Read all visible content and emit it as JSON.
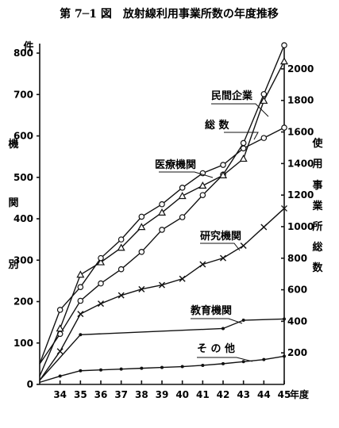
{
  "title": "第 7─1 図　放射線利用事業所数の年度推移",
  "left_axis": {
    "unit": "件",
    "label_chars": [
      "機",
      "関",
      "別"
    ],
    "ticks": [
      0,
      100,
      200,
      300,
      400,
      500,
      600,
      700,
      800
    ]
  },
  "right_axis": {
    "label_chars": [
      "使",
      "用",
      "事",
      "業",
      "所",
      "総",
      "数"
    ],
    "ticks": [
      200,
      400,
      600,
      800,
      1000,
      1200,
      1400,
      1600,
      1800,
      2000
    ]
  },
  "x_axis": {
    "ticks": [
      "34",
      "35",
      "36",
      "37",
      "38",
      "39",
      "40",
      "41",
      "42",
      "43",
      "44",
      "45"
    ],
    "suffix": "年度"
  },
  "chart_data": {
    "type": "line",
    "title": "第 7─1 図　放射線利用事業所数の年度推移",
    "x": [
      33,
      34,
      35,
      36,
      37,
      38,
      39,
      40,
      41,
      42,
      43,
      44,
      45
    ],
    "x_tick_labels": [
      "34",
      "35",
      "36",
      "37",
      "38",
      "39",
      "40",
      "41",
      "42",
      "43",
      "44",
      "45年度"
    ],
    "xlim": [
      33,
      45
    ],
    "y_left": {
      "label": "件 機関別",
      "range": [
        0,
        800
      ]
    },
    "y_right": {
      "label": "使用事業所総数",
      "range": [
        0,
        2100
      ]
    },
    "series": [
      {
        "name": "総 数",
        "axis": "right",
        "marker": "open-circle",
        "x": [
          33,
          34,
          35,
          36,
          37,
          38,
          39,
          40,
          41,
          42,
          43,
          44,
          45
        ],
        "values": [
          130,
          320,
          530,
          640,
          730,
          840,
          980,
          1060,
          1200,
          1330,
          1530,
          1840,
          2150
        ]
      },
      {
        "name": "民間企業",
        "axis": "left",
        "marker": "triangle",
        "x": [
          33,
          34,
          35,
          36,
          37,
          38,
          39,
          40,
          41,
          42,
          43,
          44,
          45
        ],
        "values": [
          20,
          135,
          265,
          295,
          330,
          380,
          415,
          455,
          480,
          505,
          545,
          685,
          780
        ]
      },
      {
        "name": "医療機関",
        "axis": "left",
        "marker": "open-circle",
        "x": [
          33,
          34,
          35,
          36,
          37,
          38,
          39,
          40,
          41,
          42,
          43,
          44,
          45
        ],
        "values": [
          50,
          180,
          235,
          305,
          350,
          405,
          435,
          475,
          510,
          530,
          570,
          595,
          620
        ]
      },
      {
        "name": "研究機関",
        "axis": "left",
        "marker": "cross",
        "x": [
          33,
          34,
          35,
          36,
          37,
          38,
          39,
          40,
          41,
          42,
          43,
          44,
          45
        ],
        "values": [
          10,
          80,
          170,
          195,
          215,
          230,
          240,
          255,
          290,
          305,
          335,
          380,
          425
        ]
      },
      {
        "name": "教育機関",
        "axis": "left",
        "marker": "dot",
        "x": [
          33,
          35,
          42,
          43,
          45
        ],
        "values": [
          10,
          120,
          135,
          155,
          158
        ]
      },
      {
        "name": "そ の 他",
        "axis": "left",
        "marker": "dot",
        "x": [
          33,
          34,
          35,
          36,
          37,
          38,
          39,
          40,
          41,
          42,
          43,
          44,
          45
        ],
        "values": [
          5,
          20,
          33,
          35,
          37,
          39,
          41,
          43,
          46,
          50,
          55,
          60,
          68
        ]
      }
    ]
  }
}
